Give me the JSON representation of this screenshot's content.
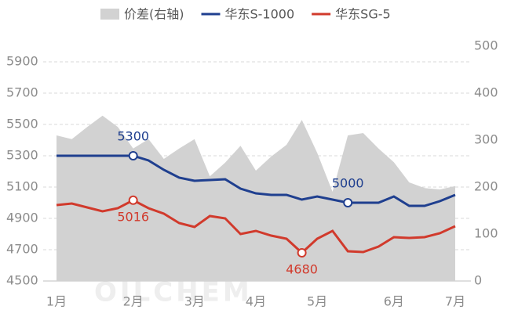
{
  "chart_data": {
    "type": "line",
    "categories": [
      "1月",
      null,
      null,
      null,
      null,
      "2月",
      null,
      null,
      null,
      "3月",
      null,
      null,
      null,
      "4月",
      null,
      null,
      null,
      "5月",
      null,
      null,
      null,
      null,
      "6月",
      null,
      null,
      null,
      "7月"
    ],
    "ylim": [
      4500,
      6000
    ],
    "yticks": [
      4500,
      4700,
      4900,
      5100,
      5300,
      5500,
      5700,
      5900
    ],
    "y2lim": [
      0,
      500
    ],
    "y2ticks": [
      0,
      100,
      200,
      300,
      400,
      500
    ],
    "legend": "top",
    "watermark": "OILCHEM",
    "series": [
      {
        "name": "价差(右轴)",
        "type": "area",
        "axis": "y2",
        "color": "#d2d2d2",
        "values": [
          310,
          302,
          328,
          352,
          328,
          282,
          302,
          260,
          282,
          302,
          223,
          252,
          288,
          235,
          265,
          290,
          343,
          273,
          190,
          310,
          315,
          282,
          253,
          210,
          198,
          195,
          202
        ]
      },
      {
        "name": "华东S-1000",
        "type": "line",
        "color": "#1f3f8f",
        "labeled": [
          5,
          19
        ],
        "values": [
          5300,
          5300,
          5300,
          5300,
          5300,
          5300,
          5270,
          5210,
          5160,
          5140,
          5145,
          5150,
          5090,
          5060,
          5050,
          5050,
          5020,
          5040,
          5020,
          5000,
          5000,
          5000,
          5040,
          4980,
          4980,
          5010,
          5050
        ]
      },
      {
        "name": "华东SG-5",
        "type": "line",
        "color": "#d13a2c",
        "labeled": [
          5,
          16
        ],
        "values": [
          4985,
          4995,
          4970,
          4945,
          4965,
          5016,
          4965,
          4930,
          4870,
          4845,
          4915,
          4900,
          4800,
          4820,
          4790,
          4770,
          4680,
          4770,
          4820,
          4690,
          4685,
          4720,
          4780,
          4775,
          4780,
          4805,
          4850
        ]
      }
    ]
  }
}
